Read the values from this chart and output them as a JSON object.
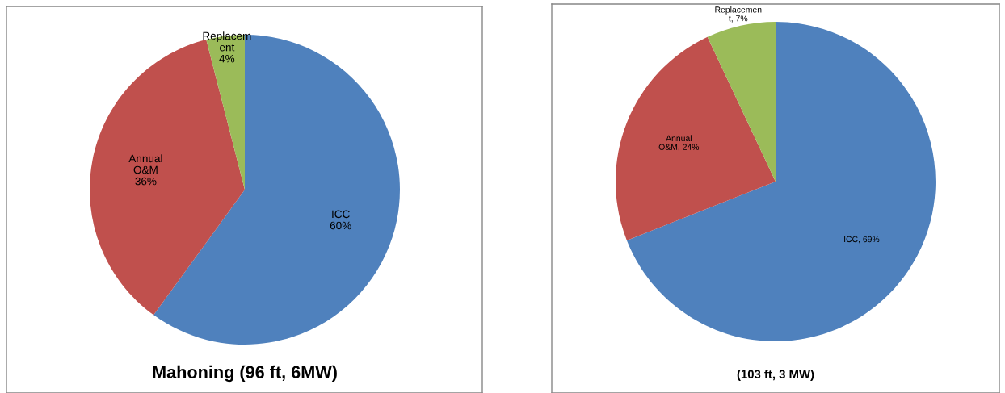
{
  "chart_data": [
    {
      "type": "pie",
      "title": "Mahoning (96 ft, 6MW)",
      "categories": [
        "ICC",
        "Annual\nO&M",
        "Replacem\nent"
      ],
      "values": [
        60,
        36,
        4
      ],
      "value_labels": [
        "60%",
        "36%",
        "4%"
      ],
      "colors": [
        "#4f81bd",
        "#c0504d",
        "#9bbb59"
      ],
      "legend": false
    },
    {
      "type": "pie",
      "title": "(103 ft, 3 MW)",
      "categories": [
        "ICC",
        "Annual\nO&M",
        "Replacemen\nt"
      ],
      "values": [
        69,
        24,
        7
      ],
      "value_labels": [
        "69%",
        "24%",
        "7%"
      ],
      "colors": [
        "#4f81bd",
        "#c0504d",
        "#9bbb59"
      ],
      "legend": false
    }
  ]
}
